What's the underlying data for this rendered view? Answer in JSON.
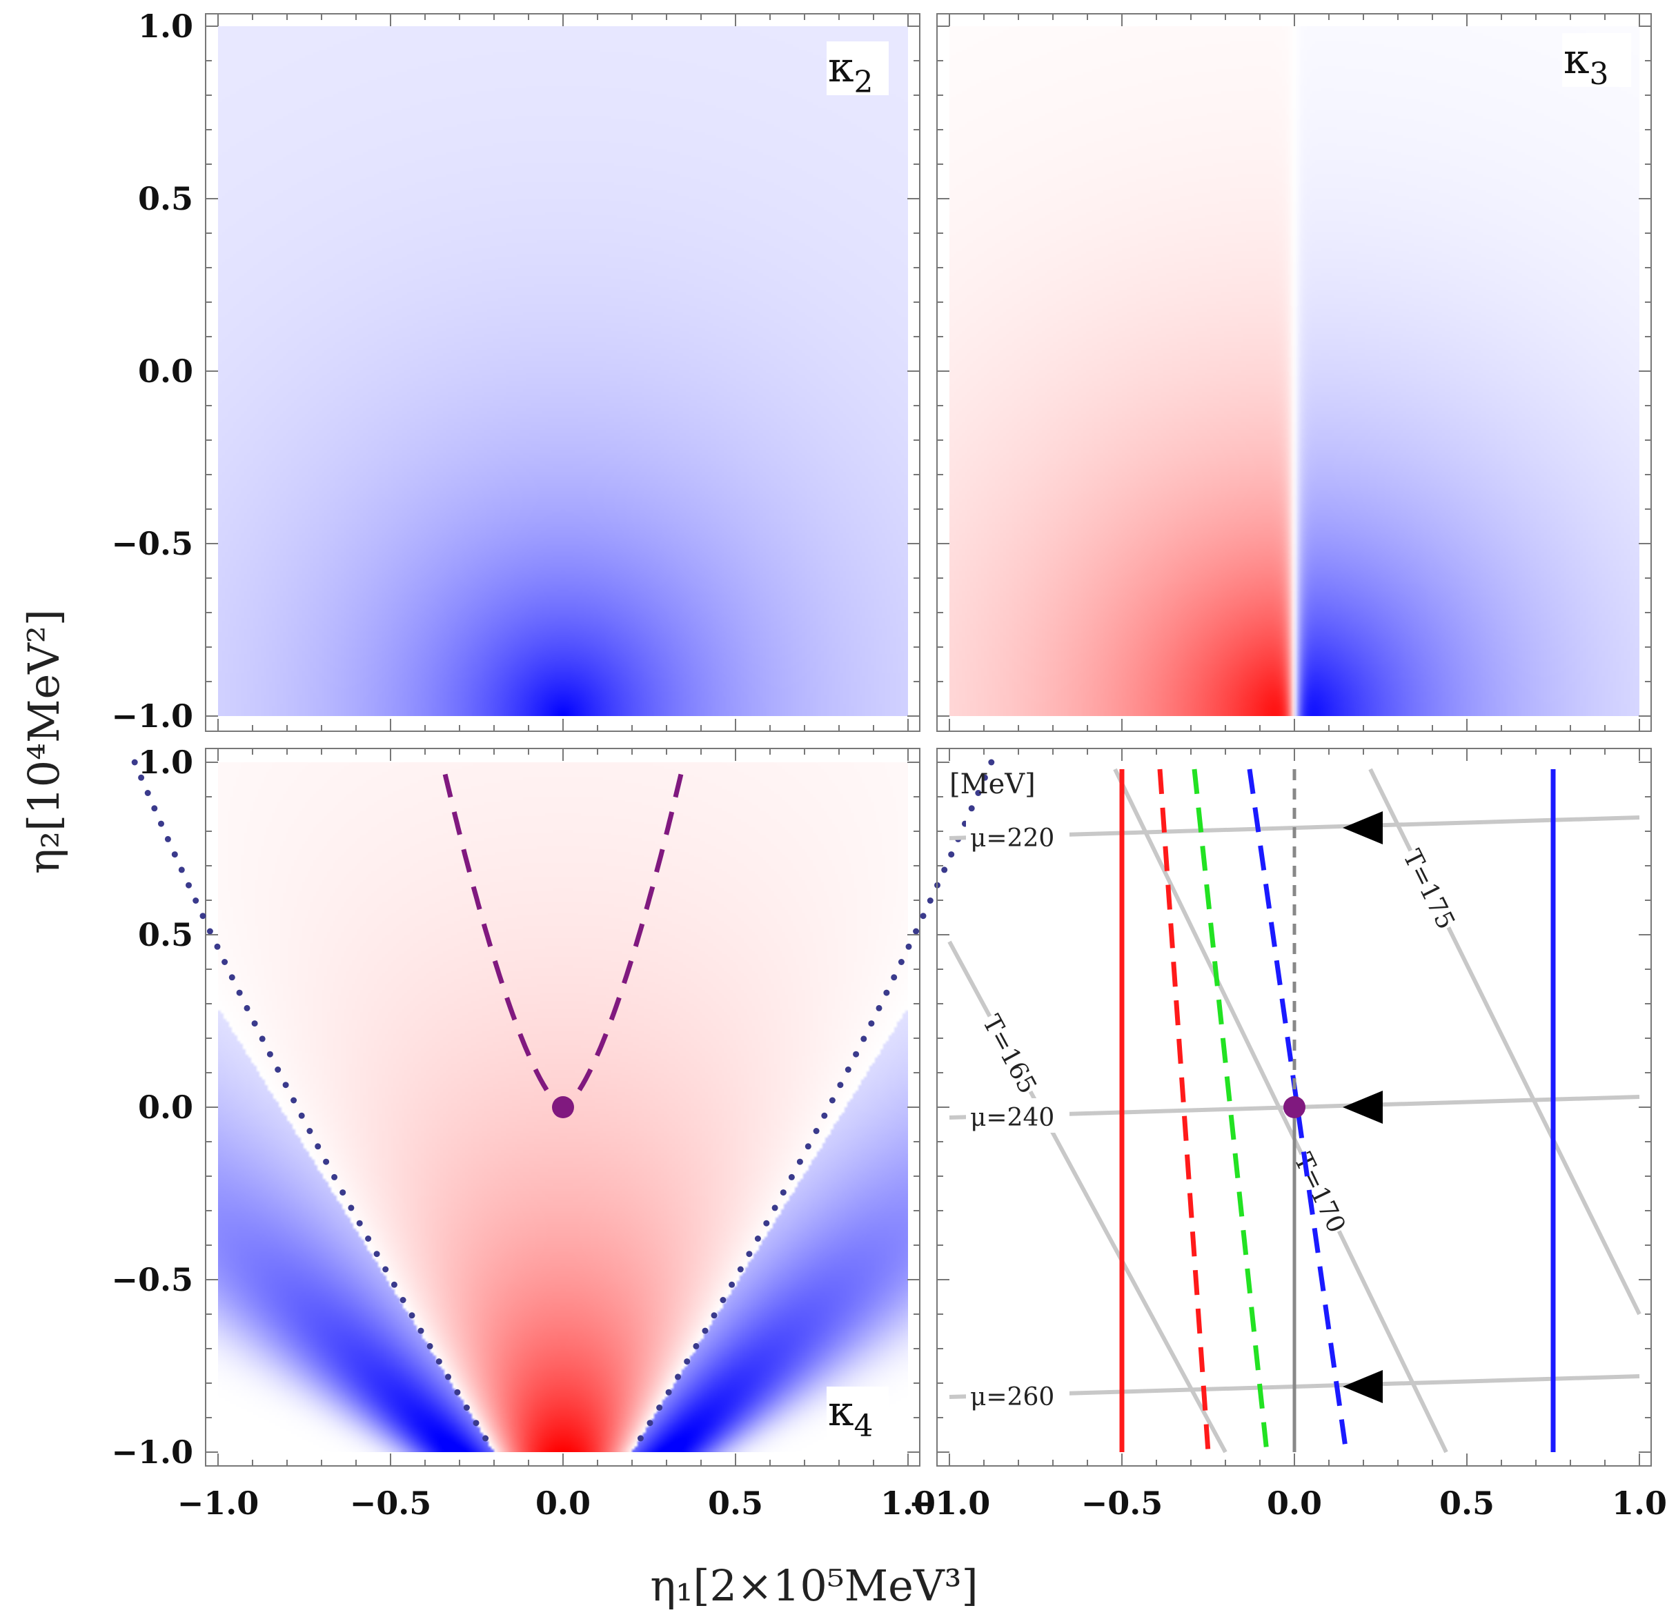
{
  "chart_data": {
    "type": "heatmap",
    "x_axis_label": "η₁[2×10⁵MeV³]",
    "y_axis_label": "η₂[10⁴MeV²]",
    "xlim": [
      -1.0,
      1.0
    ],
    "ylim": [
      -1.0,
      1.0
    ],
    "x_ticks": [
      "−1.0",
      "−0.5",
      "0.0",
      "0.5",
      "1.0"
    ],
    "y_ticks": [
      "−1.0",
      "−0.5",
      "0.0",
      "0.5",
      "1.0"
    ],
    "panels": [
      {
        "id": "kappa2",
        "label": "κ",
        "subscript": "2",
        "kind": "density-negative"
      },
      {
        "id": "kappa3",
        "label": "κ",
        "subscript": "3",
        "kind": "density-odd"
      },
      {
        "id": "kappa4",
        "label": "κ",
        "subscript": "4",
        "kind": "density-quartic",
        "critical_point": {
          "x": 0.0,
          "y": 0.0
        },
        "dashed_boundary": {
          "a": 0.35,
          "exponent": 0.667
        },
        "dotted_boundary": {
          "a": 0.2,
          "b": 0.62
        }
      },
      {
        "id": "mapping",
        "label": "",
        "kind": "mapping",
        "unit": "[MeV]",
        "mu_lines": [
          {
            "label": "μ=220",
            "y_left": 0.78,
            "y_right": 0.84
          },
          {
            "label": "μ=240",
            "y_left": -0.03,
            "y_right": 0.03
          },
          {
            "label": "μ=260",
            "y_left": -0.84,
            "y_right": -0.78
          }
        ],
        "T_lines": [
          {
            "label": "T=165",
            "p1": [
              -1.0,
              0.48
            ],
            "p2": [
              -0.2,
              -1.0
            ]
          },
          {
            "label": "T=170",
            "p1": [
              -0.52,
              0.98
            ],
            "p2": [
              0.44,
              -1.0
            ]
          },
          {
            "label": "T=175",
            "p1": [
              0.22,
              0.98
            ],
            "p2": [
              1.0,
              -0.6
            ]
          }
        ],
        "freezeout_lines": [
          {
            "color": "#ff1a1a",
            "style": "solid",
            "x_top": -0.5,
            "x_bottom": -0.5
          },
          {
            "color": "#ff1a1a",
            "style": "dashed",
            "x_top": -0.39,
            "x_bottom": -0.25
          },
          {
            "color": "#22e222",
            "style": "dashed",
            "x_top": -0.29,
            "x_bottom": -0.08
          },
          {
            "color": "#1a1aff",
            "style": "dashed",
            "x_top": -0.13,
            "x_bottom": 0.15
          },
          {
            "color": "#888888",
            "style": "dashed-then-solid",
            "x_top": 0.0,
            "x_bottom": 0.0
          },
          {
            "color": "#1a1aff",
            "style": "solid",
            "x_top": 0.75,
            "x_bottom": 0.75
          }
        ],
        "arrows": [
          {
            "x": 0.2,
            "y": 0.81
          },
          {
            "x": 0.2,
            "y": 0.0
          },
          {
            "x": 0.2,
            "y": -0.81
          }
        ],
        "critical_point": {
          "x": 0.0,
          "y": 0.0
        }
      }
    ]
  }
}
